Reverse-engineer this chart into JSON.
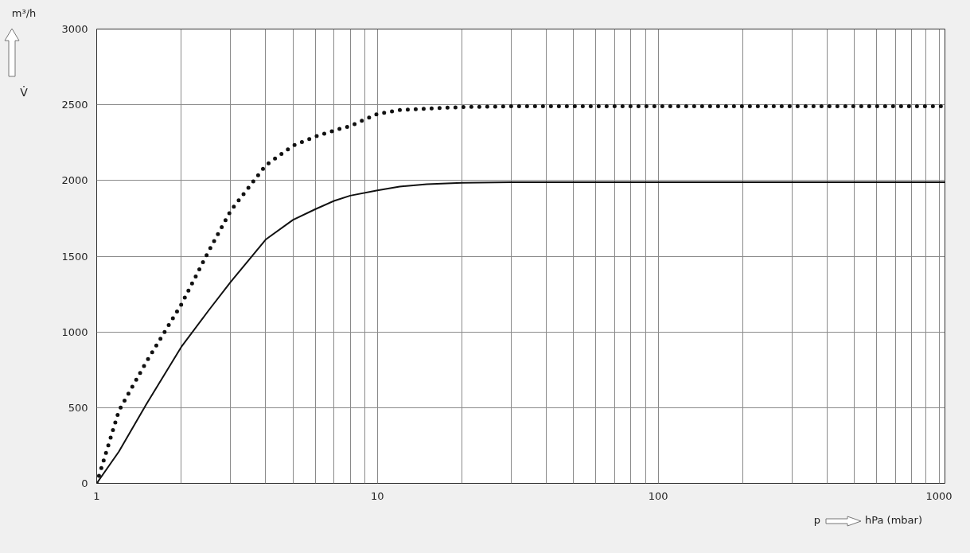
{
  "chart_data": {
    "type": "line",
    "xlabel": "p",
    "ylabel": "V̇",
    "annotations": [
      "m³/h",
      "hPa (mbar)"
    ],
    "log": "x",
    "grid": true,
    "marker": "none",
    "xlim": [
      1,
      1050
    ],
    "ylim": [
      0,
      3000
    ],
    "xticks": [
      1,
      {
        "value": 2,
        "label": null
      },
      {
        "value": 3,
        "label": null
      },
      {
        "value": 4,
        "label": null
      },
      {
        "value": 5,
        "label": null
      },
      {
        "value": 6,
        "label": null
      },
      {
        "value": 7,
        "label": null
      },
      {
        "value": 8,
        "label": null
      },
      {
        "value": 9,
        "label": null
      },
      10,
      {
        "value": 20,
        "label": null
      },
      {
        "value": 30,
        "label": null
      },
      {
        "value": 40,
        "label": null
      },
      {
        "value": 50,
        "label": null
      },
      {
        "value": 60,
        "label": null
      },
      {
        "value": 70,
        "label": null
      },
      {
        "value": 80,
        "label": null
      },
      {
        "value": 90,
        "label": null
      },
      100,
      {
        "value": 200,
        "label": null
      },
      {
        "value": 300,
        "label": null
      },
      {
        "value": 400,
        "label": null
      },
      {
        "value": 500,
        "label": null
      },
      {
        "value": 600,
        "label": null
      },
      {
        "value": 700,
        "label": null
      },
      {
        "value": 800,
        "label": null
      },
      {
        "value": 900,
        "label": null
      },
      1000
    ],
    "yticks": [
      0,
      500,
      1000,
      1500,
      2000,
      2500,
      3000
    ],
    "series": [
      {
        "color": "#111111",
        "line_style": "dotted",
        "x": [
          1,
          1.2,
          1.5,
          2,
          2.5,
          3,
          4,
          5,
          6,
          7,
          8,
          10,
          12,
          15,
          20,
          30,
          50,
          100,
          1050
        ],
        "values": [
          0,
          480,
          800,
          1180,
          1530,
          1800,
          2100,
          2230,
          2290,
          2330,
          2360,
          2440,
          2465,
          2475,
          2485,
          2490,
          2490,
          2490,
          2490
        ]
      },
      {
        "color": "#111111",
        "line_style": "solid",
        "x": [
          1,
          1.2,
          1.5,
          2,
          2.5,
          3,
          4,
          5,
          6,
          7,
          8,
          10,
          12,
          15,
          20,
          30,
          50,
          100,
          1050
        ],
        "values": [
          0,
          210,
          520,
          900,
          1140,
          1330,
          1610,
          1740,
          1810,
          1865,
          1900,
          1935,
          1960,
          1975,
          1985,
          1988,
          1988,
          1988,
          1988
        ]
      }
    ]
  }
}
